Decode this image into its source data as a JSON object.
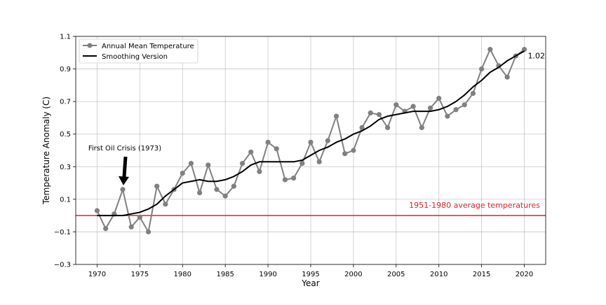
{
  "chart_data": {
    "type": "line",
    "title": "",
    "xlabel": "Year",
    "ylabel": "Temperature Anomaly (C)",
    "xlim": [
      1967.5,
      2022.5
    ],
    "ylim": [
      -0.3,
      1.1
    ],
    "grid": true,
    "legend_position": "upper-left",
    "x_ticks": [
      1970,
      1975,
      1980,
      1985,
      1990,
      1995,
      2000,
      2005,
      2010,
      2015,
      2020
    ],
    "y_ticks": [
      -0.3,
      -0.1,
      0.1,
      0.3,
      0.5,
      0.7,
      0.9,
      1.1
    ],
    "x_tick_labels": [
      "1970",
      "1975",
      "1980",
      "1985",
      "1990",
      "1995",
      "2000",
      "2005",
      "2010",
      "2015",
      "2020"
    ],
    "y_tick_labels": [
      "−0.3",
      "−0.1",
      "0.1",
      "0.3",
      "0.5",
      "0.7",
      "0.9",
      "1.1"
    ],
    "series": [
      {
        "name": "Annual Mean Temperature",
        "color": "#808080",
        "marker": "circle",
        "x": [
          1970,
          1971,
          1972,
          1973,
          1974,
          1975,
          1976,
          1977,
          1978,
          1979,
          1980,
          1981,
          1982,
          1983,
          1984,
          1985,
          1986,
          1987,
          1988,
          1989,
          1990,
          1991,
          1992,
          1993,
          1994,
          1995,
          1996,
          1997,
          1998,
          1999,
          2000,
          2001,
          2002,
          2003,
          2004,
          2005,
          2006,
          2007,
          2008,
          2009,
          2010,
          2011,
          2012,
          2013,
          2014,
          2015,
          2016,
          2017,
          2018,
          2019,
          2020
        ],
        "values": [
          0.03,
          -0.08,
          0.01,
          0.16,
          -0.07,
          -0.01,
          -0.1,
          0.18,
          0.07,
          0.16,
          0.26,
          0.32,
          0.14,
          0.31,
          0.16,
          0.12,
          0.18,
          0.32,
          0.39,
          0.27,
          0.45,
          0.41,
          0.22,
          0.23,
          0.32,
          0.45,
          0.33,
          0.46,
          0.61,
          0.38,
          0.4,
          0.54,
          0.63,
          0.62,
          0.54,
          0.68,
          0.64,
          0.67,
          0.54,
          0.66,
          0.72,
          0.61,
          0.65,
          0.68,
          0.75,
          0.9,
          1.02,
          0.92,
          0.85,
          0.98,
          1.02
        ]
      },
      {
        "name": "Smoothing Version",
        "color": "#000000",
        "marker": "none",
        "x": [
          1970,
          1971,
          1972,
          1973,
          1974,
          1975,
          1976,
          1977,
          1978,
          1979,
          1980,
          1981,
          1982,
          1983,
          1984,
          1985,
          1986,
          1987,
          1988,
          1989,
          1990,
          1991,
          1992,
          1993,
          1994,
          1995,
          1996,
          1997,
          1998,
          1999,
          2000,
          2001,
          2002,
          2003,
          2004,
          2005,
          2006,
          2007,
          2008,
          2009,
          2010,
          2011,
          2012,
          2013,
          2014,
          2015,
          2016,
          2017,
          2018,
          2019,
          2020
        ],
        "values": [
          0.0,
          0.0,
          0.0,
          0.0,
          0.01,
          0.02,
          0.04,
          0.07,
          0.12,
          0.16,
          0.2,
          0.21,
          0.22,
          0.21,
          0.21,
          0.22,
          0.24,
          0.27,
          0.31,
          0.33,
          0.33,
          0.33,
          0.33,
          0.33,
          0.34,
          0.37,
          0.4,
          0.42,
          0.45,
          0.47,
          0.5,
          0.52,
          0.55,
          0.59,
          0.61,
          0.62,
          0.63,
          0.64,
          0.64,
          0.64,
          0.65,
          0.67,
          0.7,
          0.74,
          0.79,
          0.83,
          0.88,
          0.91,
          0.95,
          0.98,
          1.01
        ]
      }
    ],
    "reference_line": {
      "y": 0.0,
      "color": "#d62728",
      "label": "1951-1980 average temperatures"
    },
    "annotations": [
      {
        "text": "First Oil Crisis (1973)",
        "x": 1973,
        "y": 0.16,
        "type": "arrow"
      },
      {
        "text": "1.02",
        "x": 2020,
        "y": 1.02,
        "type": "end-label"
      }
    ]
  }
}
